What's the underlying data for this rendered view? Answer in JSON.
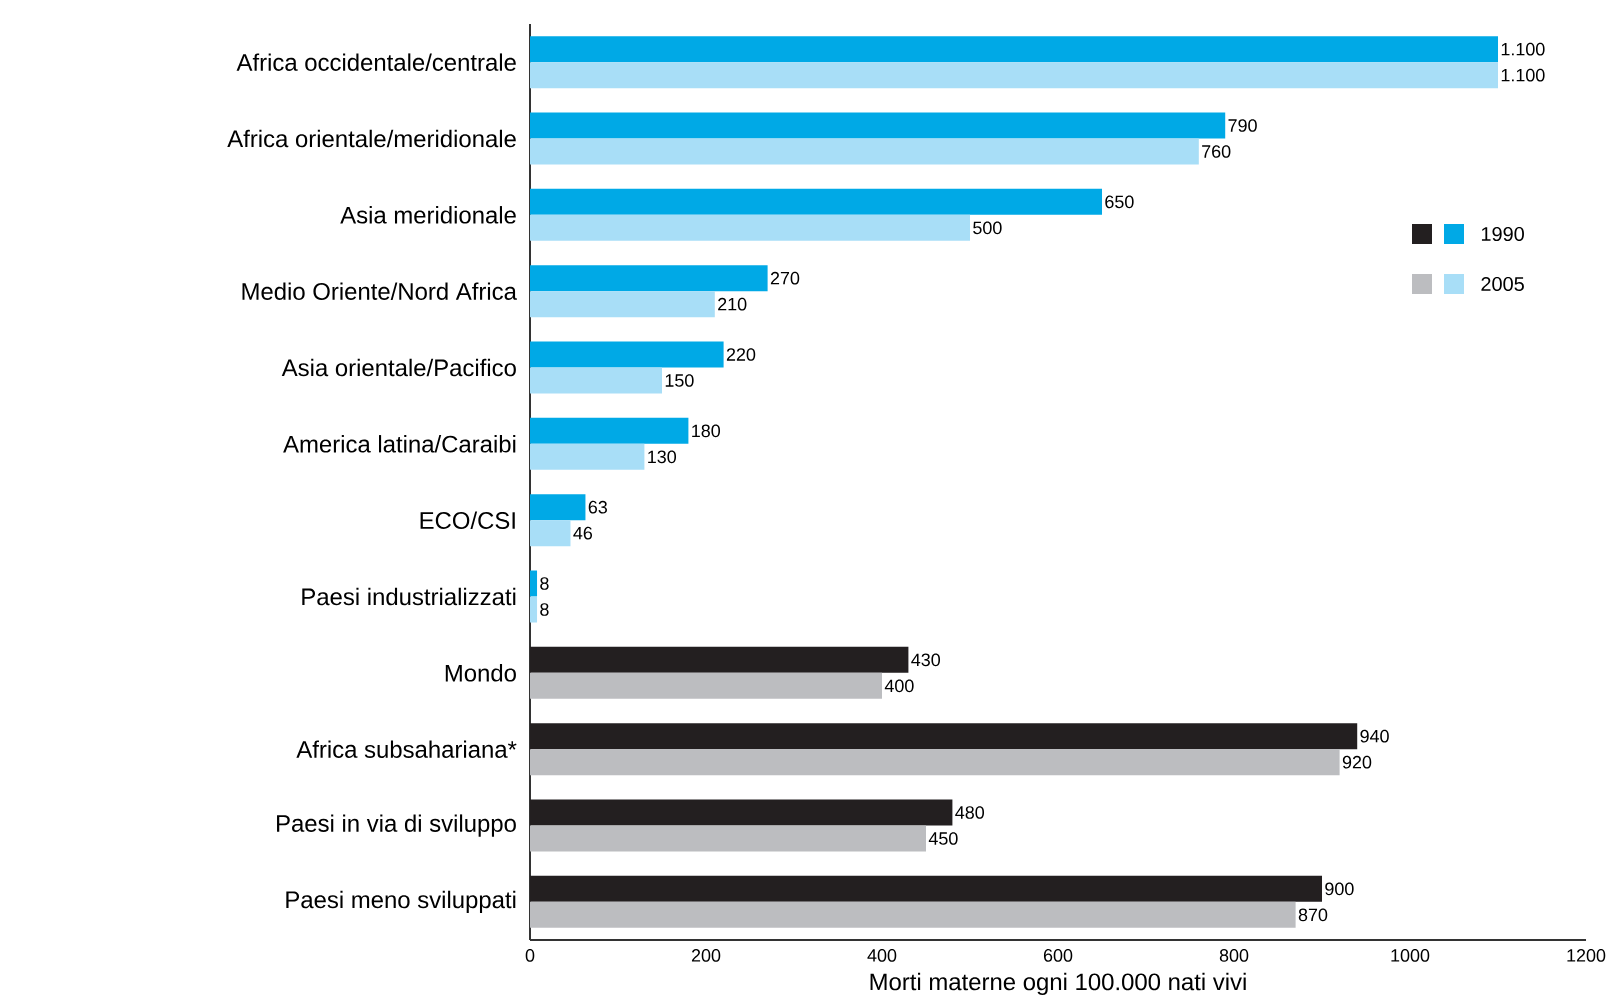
{
  "chart_data": {
    "type": "bar",
    "orientation": "horizontal",
    "xlabel": "Morti materne ogni 100.000 nati vivi",
    "categories": [
      "Africa occidentale/centrale",
      "Africa orientale/meridionale",
      "Asia meridionale",
      "Medio Oriente/Nord Africa",
      "Asia orientale/Pacifico",
      "America latina/Caraibi",
      "ECO/CSI",
      "Paesi industrializzati",
      "Mondo",
      "Africa subsahariana*",
      "Paesi in via di sviluppo",
      "Paesi meno sviluppati"
    ],
    "series": [
      {
        "name": "1990",
        "colors": [
          "#00a9e6",
          "#00a9e6",
          "#00a9e6",
          "#00a9e6",
          "#00a9e6",
          "#00a9e6",
          "#00a9e6",
          "#00a9e6",
          "#231f20",
          "#231f20",
          "#231f20",
          "#231f20"
        ],
        "values": [
          1100,
          790,
          650,
          270,
          220,
          180,
          63,
          8,
          430,
          940,
          480,
          900
        ],
        "value_labels": [
          "1.100",
          "790",
          "650",
          "270",
          "220",
          "180",
          "63",
          "8",
          "430",
          "940",
          "480",
          "900"
        ]
      },
      {
        "name": "2005",
        "colors": [
          "#a8def7",
          "#a8def7",
          "#a8def7",
          "#a8def7",
          "#a8def7",
          "#a8def7",
          "#a8def7",
          "#a8def7",
          "#bcbdc0",
          "#bcbdc0",
          "#bcbdc0",
          "#bcbdc0"
        ],
        "values": [
          1100,
          760,
          500,
          210,
          150,
          130,
          46,
          8,
          400,
          920,
          450,
          870
        ],
        "value_labels": [
          "1.100",
          "760",
          "500",
          "210",
          "150",
          "130",
          "46",
          "8",
          "400",
          "920",
          "450",
          "870"
        ]
      }
    ],
    "xlim": [
      0,
      1200
    ],
    "xticks": [
      0,
      200,
      400,
      600,
      800,
      1000,
      1200
    ],
    "legend": "right",
    "grid": false
  }
}
